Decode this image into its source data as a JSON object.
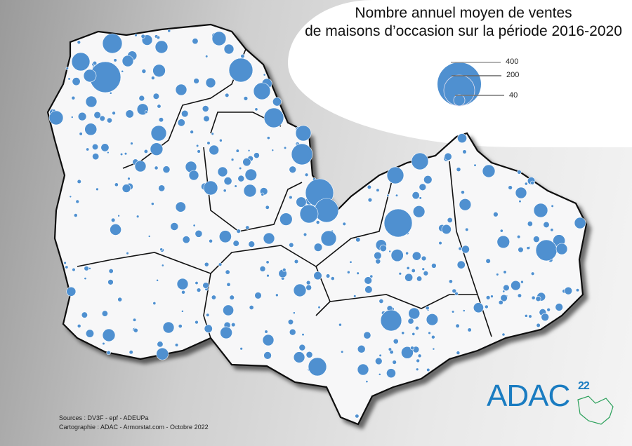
{
  "title_line1": "Nombre annuel moyen de ventes",
  "title_line2": "de maisons d’occasion sur la période 2016-2020",
  "legend": {
    "values": [
      "400",
      "200",
      "40"
    ],
    "color": "#4f90d0"
  },
  "sources": "Sources : DV3F - epf - ADEUPa",
  "cartographie": "Cartographie : ADAC - Armorstat.com - Octobre 2022",
  "logo": {
    "text": "ADAC",
    "superscript": "22",
    "color": "#1a7cc1",
    "accent": "#2aa05a"
  }
}
